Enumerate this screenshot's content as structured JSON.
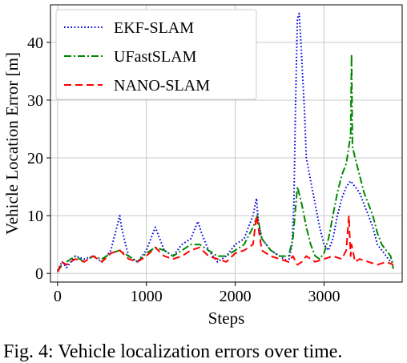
{
  "caption": "Fig. 4: Vehicle localization errors over time.",
  "colors": {
    "ekf": "#0000dd",
    "ufast": "#008800",
    "nano": "#ff0000",
    "grid": "#c8c8c8",
    "frame": "#000000"
  },
  "chart_data": {
    "type": "line",
    "title": "",
    "xlabel": "Steps",
    "ylabel": "Vehicle Location Error [m]",
    "xlim": [
      -80,
      3880
    ],
    "ylim": [
      -1.5,
      46.5
    ],
    "xticks": [
      0,
      1000,
      2000,
      3000
    ],
    "yticks": [
      0,
      10,
      20,
      30,
      40
    ],
    "grid": true,
    "legend_position": "top-left",
    "series": [
      {
        "name": "EKF-SLAM",
        "style": "dotted",
        "color": "#0000dd",
        "x": [
          0,
          50,
          100,
          200,
          300,
          400,
          500,
          600,
          650,
          700,
          720,
          750,
          800,
          900,
          1000,
          1050,
          1100,
          1150,
          1200,
          1300,
          1400,
          1500,
          1580,
          1620,
          1700,
          1800,
          1900,
          2000,
          2100,
          2150,
          2200,
          2240,
          2260,
          2300,
          2400,
          2500,
          2600,
          2640,
          2660,
          2680,
          2700,
          2720,
          2740,
          2760,
          2780,
          2800,
          2850,
          2900,
          2950,
          3000,
          3050,
          3100,
          3150,
          3200,
          3250,
          3300,
          3350,
          3400,
          3450,
          3500,
          3550,
          3600,
          3650,
          3700,
          3750,
          3780
        ],
        "y": [
          0.5,
          2,
          1,
          3,
          2.5,
          3,
          2,
          4,
          7,
          10,
          8,
          6,
          3,
          2,
          4,
          6,
          8,
          6,
          4,
          3,
          5,
          6,
          9,
          7,
          4,
          2,
          3,
          5,
          6,
          8,
          10,
          13,
          9,
          6,
          4,
          3,
          2,
          5,
          12,
          30,
          44,
          45,
          40,
          34,
          28,
          20,
          16,
          12,
          8,
          5,
          4,
          6,
          10,
          13,
          15,
          16,
          15,
          14,
          12,
          10,
          8,
          5,
          4,
          3,
          2,
          2
        ]
      },
      {
        "name": "UFastSLAM",
        "style": "dashdot",
        "color": "#008800",
        "x": [
          0,
          50,
          100,
          200,
          300,
          400,
          500,
          600,
          700,
          800,
          900,
          1000,
          1100,
          1200,
          1300,
          1400,
          1500,
          1600,
          1700,
          1800,
          1900,
          2000,
          2100,
          2200,
          2250,
          2300,
          2400,
          2500,
          2600,
          2650,
          2700,
          2750,
          2800,
          2850,
          2900,
          2950,
          3000,
          3050,
          3100,
          3150,
          3200,
          3250,
          3300,
          3310,
          3320,
          3350,
          3400,
          3450,
          3500,
          3550,
          3600,
          3650,
          3700,
          3750,
          3780
        ],
        "y": [
          0.3,
          1.5,
          2,
          3,
          2,
          3,
          2.5,
          3.5,
          4,
          3,
          2,
          3.5,
          4.5,
          4,
          3,
          4,
          5,
          5,
          4,
          3,
          3,
          4,
          5,
          8,
          10,
          6,
          4,
          3,
          3,
          6,
          15,
          12,
          8,
          5,
          3,
          2.5,
          3.5,
          6,
          10,
          14,
          17,
          19,
          24,
          38,
          22,
          20,
          17,
          14,
          12,
          10,
          7,
          5,
          4,
          3,
          0.8
        ]
      },
      {
        "name": "NANO-SLAM",
        "style": "dashed",
        "color": "#ff0000",
        "x": [
          0,
          50,
          100,
          200,
          300,
          400,
          500,
          600,
          700,
          800,
          900,
          1000,
          1100,
          1200,
          1300,
          1400,
          1500,
          1600,
          1700,
          1800,
          1900,
          2000,
          2100,
          2200,
          2240,
          2260,
          2300,
          2400,
          2500,
          2600,
          2650,
          2700,
          2750,
          2800,
          2900,
          3000,
          3100,
          3200,
          3250,
          3280,
          3290,
          3300,
          3310,
          3350,
          3400,
          3500,
          3600,
          3700,
          3780
        ],
        "y": [
          0.2,
          2,
          1.5,
          2.5,
          2,
          3,
          2,
          3.5,
          4,
          2.5,
          2,
          3,
          4.5,
          3,
          2.5,
          3,
          4,
          4.5,
          3,
          2.5,
          2,
          3.5,
          4,
          5,
          10,
          8,
          4,
          3,
          2.5,
          2,
          3,
          1.5,
          2,
          3,
          2,
          2.5,
          3,
          2.5,
          4,
          10,
          6,
          3,
          5,
          2,
          2.5,
          2,
          1.5,
          2,
          1.5
        ]
      }
    ]
  }
}
